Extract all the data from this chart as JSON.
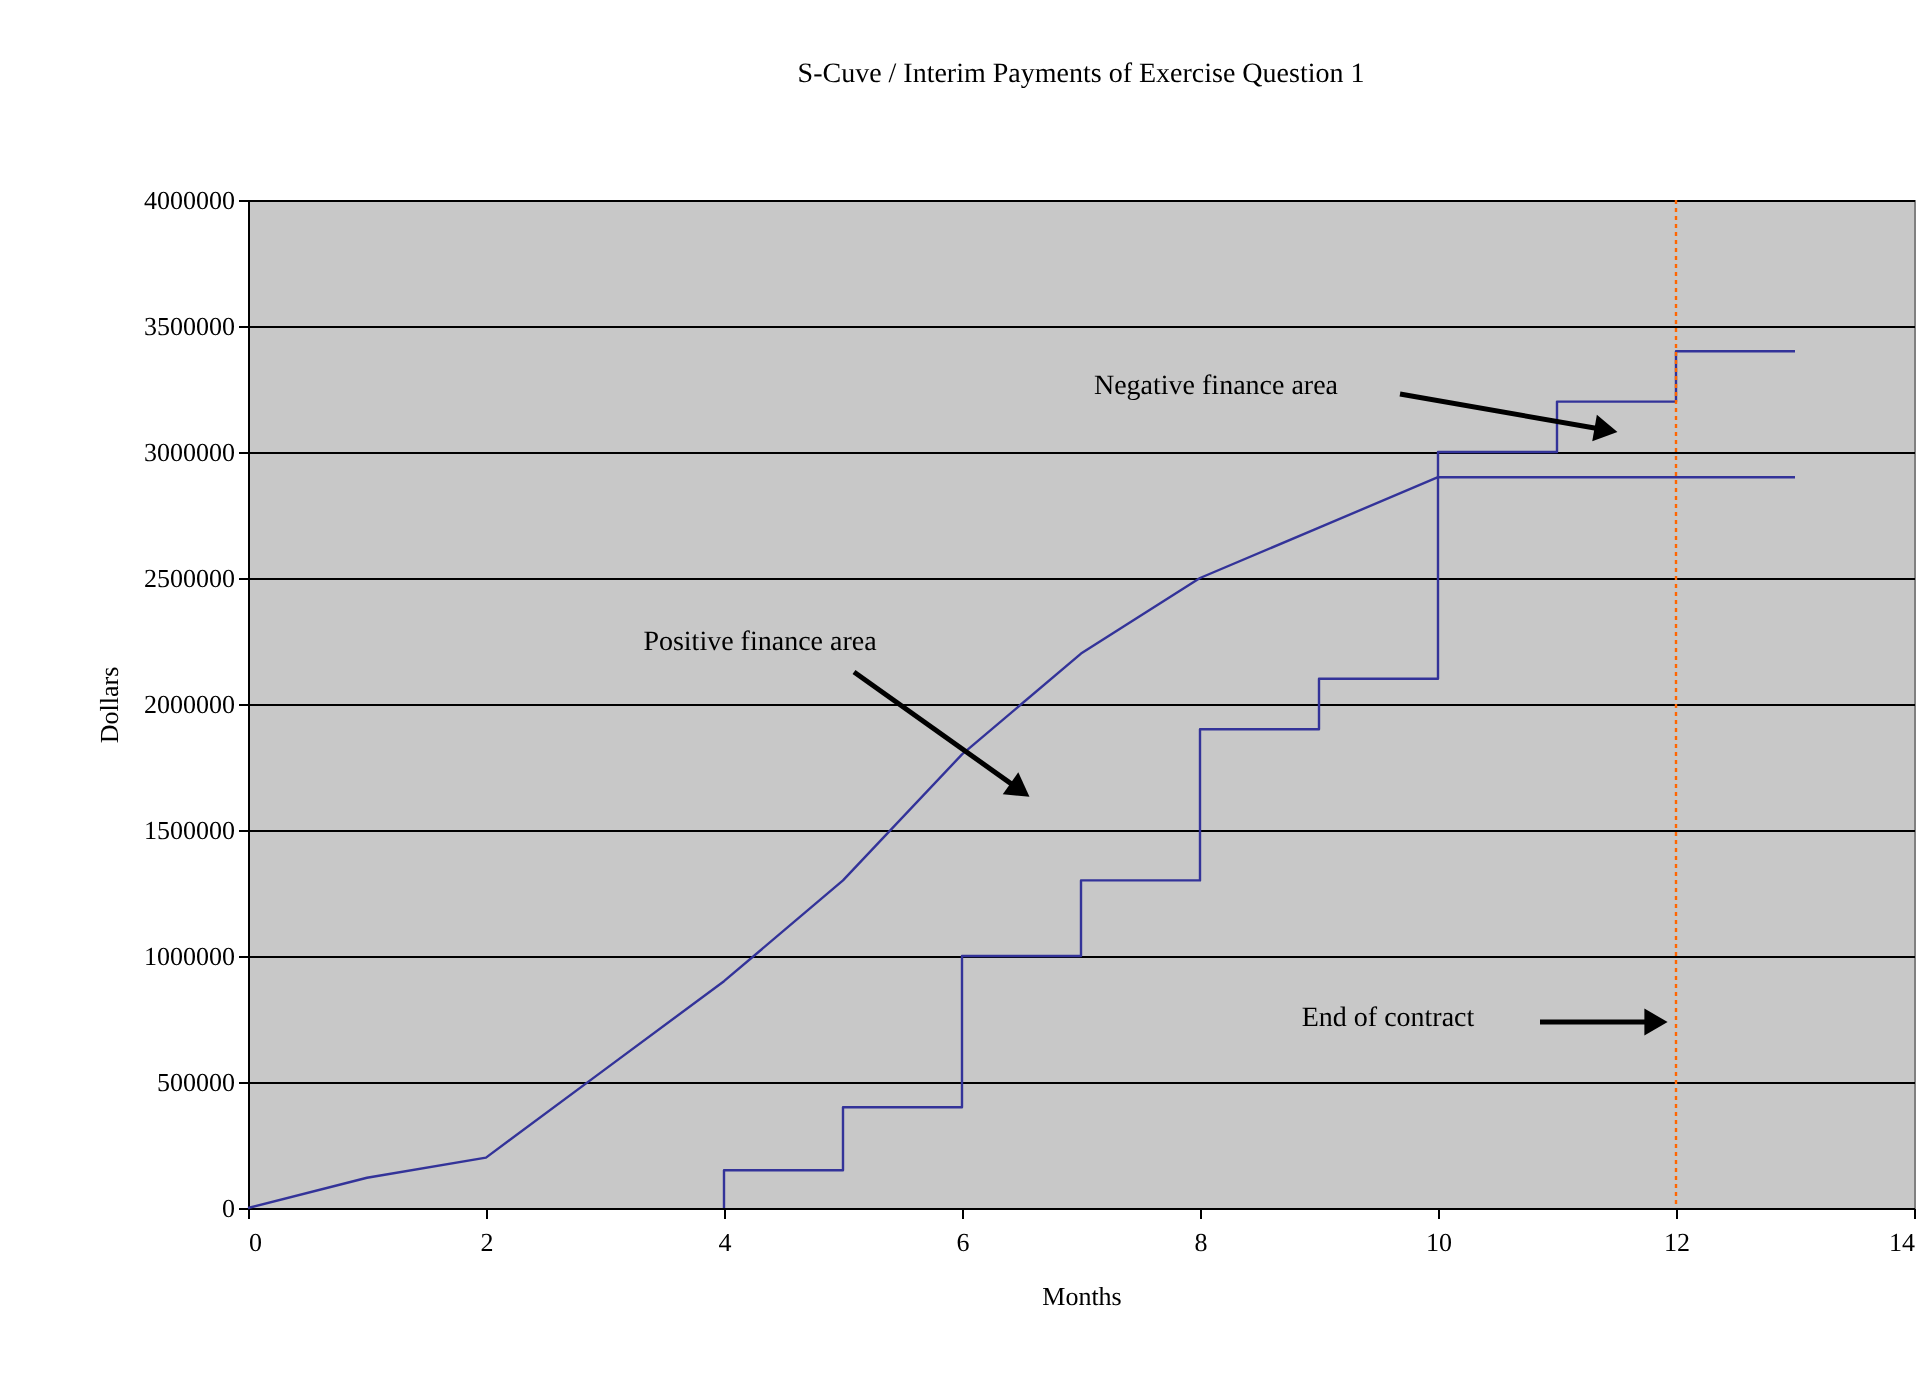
{
  "chart_data": {
    "type": "line",
    "title": "S-Cuve / Interim Payments of Exercise Question 1",
    "xlabel": "Months",
    "ylabel": "Dollars",
    "series": [
      {
        "color": "#333399",
        "x": [
          0,
          1,
          2,
          3,
          4,
          5,
          6,
          7,
          8,
          9,
          10,
          11,
          12,
          13
        ],
        "values": [
          0,
          120000,
          200000,
          550000,
          900000,
          1300000,
          1800000,
          2200000,
          2500000,
          2700000,
          2900000,
          2900000,
          2900000,
          2900000
        ]
      },
      {
        "type": "step",
        "color": "#333399",
        "x": [
          4,
          4,
          5,
          6,
          7,
          8,
          9,
          10,
          11,
          12,
          13
        ],
        "values": [
          0,
          150000,
          400000,
          1000000,
          1300000,
          1900000,
          2100000,
          3000000,
          3200000,
          3400000,
          3400000
        ]
      }
    ],
    "xlim": [
      0,
      14
    ],
    "xticks": [
      0,
      2,
      4,
      6,
      8,
      10,
      12,
      14
    ],
    "ylim": [
      0,
      4000000
    ],
    "yticks": [
      0,
      500000,
      1000000,
      1500000,
      2000000,
      2500000,
      3000000,
      3500000,
      4000000
    ],
    "annotations": [
      "Positive finance area",
      "Negative finance area",
      "End of contract"
    ],
    "ref_lines": [
      {
        "axis": "x",
        "value": 12,
        "color": "#ff6600",
        "line_style": "dotted"
      }
    ],
    "grid": "y",
    "marker": "none",
    "line_style": "solid"
  }
}
